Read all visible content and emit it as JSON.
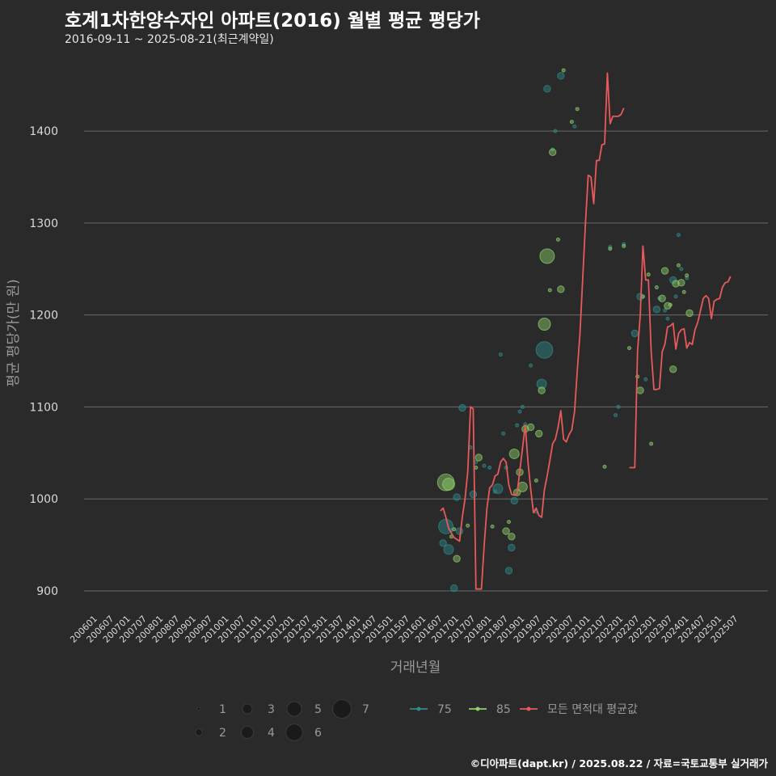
{
  "title": "호계1차한양수자인 아파트(2016) 월별 평균 평당가",
  "subtitle": "2016-09-11 ~ 2025-08-21(최근계약일)",
  "caption": "©디아파트(dapt.kr) / 2025.08.22 / 자료=국토교통부 실거래가",
  "colors": {
    "background": "#2b2a2b",
    "grid": "#6b6b6b",
    "series75": "#2e8b8b",
    "series85": "#8fd16a",
    "avg_line": "#e85a5a"
  },
  "chart_data": {
    "type": "scatter+line",
    "title": "호계1차한양수자인 아파트(2016) 월별 평균 평당가",
    "xlabel": "거래년월",
    "ylabel": "평균 평당가(만 원)",
    "ylim": [
      878,
      1488
    ],
    "yticks": [
      900,
      1000,
      1100,
      1200,
      1300,
      1400
    ],
    "x_categories": [
      "200601",
      "200607",
      "200701",
      "200707",
      "200801",
      "200807",
      "200901",
      "200907",
      "201001",
      "201007",
      "201101",
      "201107",
      "201201",
      "201207",
      "201301",
      "201307",
      "201401",
      "201407",
      "201501",
      "201507",
      "201601",
      "201607",
      "201701",
      "201707",
      "201801",
      "201807",
      "201901",
      "201907",
      "202001",
      "202007",
      "202101",
      "202107",
      "202201",
      "202207",
      "202301",
      "202307",
      "202401",
      "202407",
      "202501",
      "202507"
    ],
    "x_range_months": [
      0,
      235
    ],
    "legend": {
      "size_labels": [
        "1",
        "2",
        "3",
        "4",
        "5",
        "6",
        "7"
      ],
      "series_labels": [
        "75",
        "85",
        "모든 면적대 평균값"
      ]
    },
    "series": [
      {
        "name": "75",
        "points": [
          [
            127,
            952,
            2
          ],
          [
            128,
            970,
            5
          ],
          [
            129,
            945,
            3
          ],
          [
            130,
            966,
            1
          ],
          [
            131,
            903,
            2
          ],
          [
            132,
            1002,
            2
          ],
          [
            133,
            965,
            2
          ],
          [
            134,
            1099,
            2
          ],
          [
            137,
            1056,
            1
          ],
          [
            138,
            1005,
            2
          ],
          [
            139,
            1040,
            1
          ],
          [
            142,
            1036,
            1
          ],
          [
            144,
            1034,
            1
          ],
          [
            146,
            1008,
            1
          ],
          [
            147,
            1011,
            3
          ],
          [
            148,
            1157,
            1
          ],
          [
            149,
            1071,
            1
          ],
          [
            150,
            1034,
            1
          ],
          [
            151,
            922,
            2
          ],
          [
            152,
            947,
            2
          ],
          [
            153,
            998,
            2
          ],
          [
            154,
            1080,
            1
          ],
          [
            155,
            1095,
            1
          ],
          [
            156,
            1100,
            1
          ],
          [
            157,
            1081,
            1
          ],
          [
            159,
            1145,
            1
          ],
          [
            161,
            986,
            1
          ],
          [
            163,
            1125,
            3
          ],
          [
            164,
            1162,
            6
          ],
          [
            165,
            1446,
            2
          ],
          [
            167,
            1380,
            1
          ],
          [
            168,
            1400,
            1
          ],
          [
            170,
            1460,
            2
          ],
          [
            175,
            1405,
            1
          ],
          [
            188,
            1274,
            1
          ],
          [
            190,
            1091,
            1
          ],
          [
            191,
            1100,
            1
          ],
          [
            193,
            1277,
            1
          ],
          [
            197,
            1180,
            2
          ],
          [
            199,
            1220,
            2
          ],
          [
            201,
            1130,
            1
          ],
          [
            205,
            1206,
            2
          ],
          [
            206,
            1218,
            1
          ],
          [
            208,
            1205,
            1
          ],
          [
            209,
            1196,
            1
          ],
          [
            211,
            1238,
            2
          ],
          [
            212,
            1220,
            1
          ],
          [
            213,
            1287,
            1
          ],
          [
            214,
            1250,
            1
          ],
          [
            216,
            1240,
            1
          ]
        ]
      },
      {
        "name": "85",
        "points": [
          [
            128,
            1018,
            6
          ],
          [
            129,
            1016,
            4
          ],
          [
            130,
            959,
            1
          ],
          [
            131,
            967,
            1
          ],
          [
            132,
            935,
            2
          ],
          [
            136,
            971,
            1
          ],
          [
            139,
            1034,
            1
          ],
          [
            140,
            1045,
            2
          ],
          [
            145,
            970,
            1
          ],
          [
            150,
            965,
            2
          ],
          [
            151,
            975,
            1
          ],
          [
            152,
            959,
            2
          ],
          [
            153,
            1049,
            3
          ],
          [
            154,
            1007,
            2
          ],
          [
            155,
            1029,
            2
          ],
          [
            156,
            1013,
            3
          ],
          [
            157,
            1076,
            2
          ],
          [
            159,
            1078,
            2
          ],
          [
            161,
            1020,
            1
          ],
          [
            162,
            1071,
            2
          ],
          [
            163,
            1118,
            2
          ],
          [
            164,
            1190,
            4
          ],
          [
            165,
            1264,
            5
          ],
          [
            166,
            1227,
            1
          ],
          [
            167,
            1377,
            2
          ],
          [
            169,
            1282,
            1
          ],
          [
            170,
            1228,
            2
          ],
          [
            171,
            1466,
            1
          ],
          [
            174,
            1410,
            1
          ],
          [
            176,
            1424,
            1
          ],
          [
            186,
            1035,
            1
          ],
          [
            188,
            1272,
            1
          ],
          [
            193,
            1275,
            1
          ],
          [
            195,
            1164,
            1
          ],
          [
            198,
            1133,
            1
          ],
          [
            199,
            1118,
            2
          ],
          [
            200,
            1220,
            1
          ],
          [
            202,
            1244,
            1
          ],
          [
            203,
            1060,
            1
          ],
          [
            205,
            1230,
            1
          ],
          [
            207,
            1218,
            2
          ],
          [
            208,
            1248,
            2
          ],
          [
            209,
            1210,
            2
          ],
          [
            210,
            1211,
            1
          ],
          [
            211,
            1141,
            2
          ],
          [
            212,
            1234,
            2
          ],
          [
            213,
            1254,
            1
          ],
          [
            214,
            1235,
            2
          ],
          [
            215,
            1225,
            1
          ],
          [
            216,
            1243,
            1
          ],
          [
            217,
            1202,
            2
          ]
        ]
      },
      {
        "name": "모든 면적대 평균값",
        "segments": [
          [
            [
              126,
              987
            ],
            [
              127,
              990
            ],
            [
              128,
              980
            ],
            [
              129,
              968
            ],
            [
              130,
              963
            ],
            [
              131,
              958
            ],
            [
              132,
              956
            ],
            [
              133,
              954
            ],
            [
              134,
              980
            ],
            [
              135,
              1000
            ],
            [
              136,
              1030
            ],
            [
              137,
              1100
            ],
            [
              138,
              1098
            ],
            [
              139,
              902
            ],
            [
              140,
              902
            ],
            [
              141,
              902
            ],
            [
              142,
              950
            ],
            [
              143,
              990
            ],
            [
              144,
              1012
            ],
            [
              145,
              1015
            ],
            [
              146,
              1025
            ],
            [
              147,
              1027
            ],
            [
              148,
              1040
            ],
            [
              149,
              1044
            ],
            [
              150,
              1040
            ],
            [
              151,
              1015
            ],
            [
              152,
              1005
            ],
            [
              153,
              1004
            ],
            [
              154,
              1005
            ],
            [
              155,
              1030
            ],
            [
              156,
              1055
            ],
            [
              157,
              1080
            ],
            [
              158,
              1040
            ],
            [
              159,
              1010
            ],
            [
              160,
              985
            ],
            [
              161,
              990
            ],
            [
              162,
              982
            ],
            [
              163,
              980
            ],
            [
              164,
              1010
            ],
            [
              165,
              1025
            ],
            [
              166,
              1042
            ],
            [
              167,
              1060
            ],
            [
              168,
              1065
            ],
            [
              169,
              1078
            ],
            [
              170,
              1096
            ],
            [
              171,
              1065
            ],
            [
              172,
              1062
            ],
            [
              173,
              1070
            ],
            [
              174,
              1075
            ],
            [
              175,
              1095
            ],
            [
              176,
              1140
            ],
            [
              177,
              1180
            ],
            [
              178,
              1240
            ],
            [
              179,
              1300
            ],
            [
              180,
              1352
            ],
            [
              181,
              1350
            ],
            [
              182,
              1321
            ],
            [
              183,
              1368
            ],
            [
              184,
              1368
            ],
            [
              185,
              1385
            ],
            [
              186,
              1386
            ],
            [
              187,
              1463
            ],
            [
              188,
              1408
            ],
            [
              189,
              1416
            ],
            [
              190,
              1416
            ],
            [
              191,
              1416
            ],
            [
              192,
              1418
            ],
            [
              193,
              1425
            ]
          ],
          [
            [
              195,
              1034
            ],
            [
              196,
              1034
            ],
            [
              197,
              1034
            ],
            [
              198,
              1160
            ],
            [
              199,
              1200
            ],
            [
              200,
              1275
            ],
            [
              201,
              1238
            ],
            [
              202,
              1238
            ],
            [
              203,
              1160
            ],
            [
              204,
              1119
            ],
            [
              205,
              1119
            ],
            [
              206,
              1120
            ],
            [
              207,
              1160
            ],
            [
              208,
              1168
            ],
            [
              209,
              1187
            ],
            [
              210,
              1188
            ],
            [
              211,
              1191
            ],
            [
              212,
              1163
            ],
            [
              213,
              1180
            ],
            [
              214,
              1184
            ],
            [
              215,
              1185
            ],
            [
              216,
              1164
            ],
            [
              217,
              1170
            ],
            [
              218,
              1168
            ],
            [
              219,
              1184
            ],
            [
              220,
              1192
            ],
            [
              221,
              1205
            ],
            [
              222,
              1218
            ],
            [
              223,
              1221
            ],
            [
              224,
              1218
            ],
            [
              225,
              1196
            ],
            [
              226,
              1215
            ],
            [
              227,
              1217
            ],
            [
              228,
              1218
            ],
            [
              229,
              1230
            ],
            [
              230,
              1235
            ],
            [
              231,
              1236
            ],
            [
              232,
              1242
            ]
          ]
        ]
      }
    ]
  }
}
